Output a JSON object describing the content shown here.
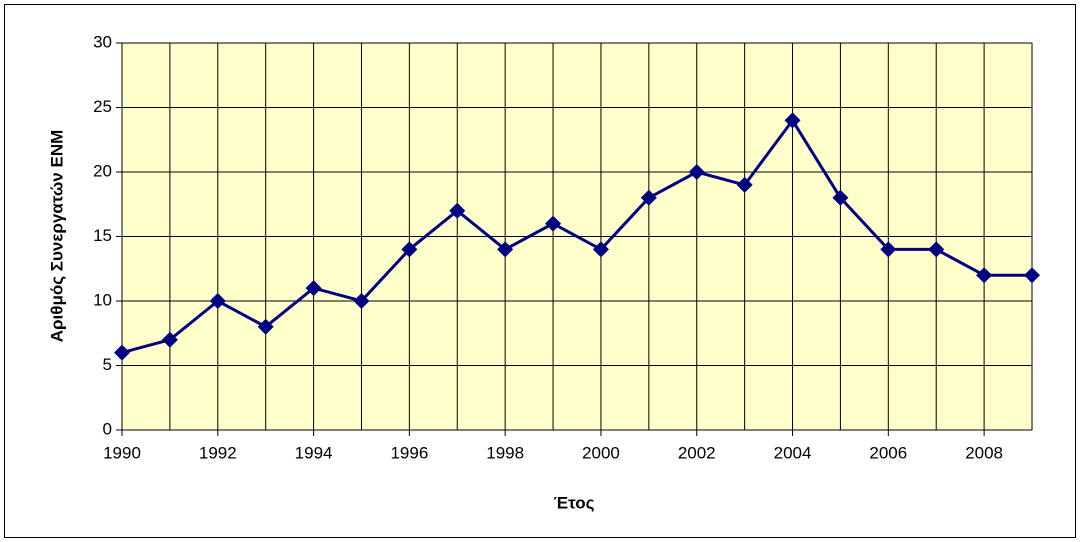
{
  "chart_data": {
    "type": "line",
    "x_label": "Έτος",
    "y_label": "Αριθμός Συνεργατών ΕΝΜ",
    "x": [
      1990,
      1991,
      1992,
      1993,
      1994,
      1995,
      1996,
      1997,
      1998,
      1999,
      2000,
      2001,
      2002,
      2003,
      2004,
      2005,
      2006,
      2007,
      2008,
      2009
    ],
    "series": [
      {
        "color": "#000080",
        "values": [
          6,
          7,
          10,
          8,
          11,
          10,
          14,
          17,
          14,
          16,
          14,
          18,
          20,
          19,
          24,
          18,
          14,
          14,
          12,
          12
        ]
      }
    ],
    "xlim": [
      1990,
      2009
    ],
    "xticks": [
      1990,
      1992,
      1994,
      1996,
      1998,
      2000,
      2002,
      2004,
      2006,
      2008
    ],
    "ylim": [
      0,
      30
    ],
    "yticks": [
      0,
      5,
      10,
      15,
      20,
      25,
      30
    ],
    "grid": true,
    "plot_background": "#ffffcc"
  }
}
